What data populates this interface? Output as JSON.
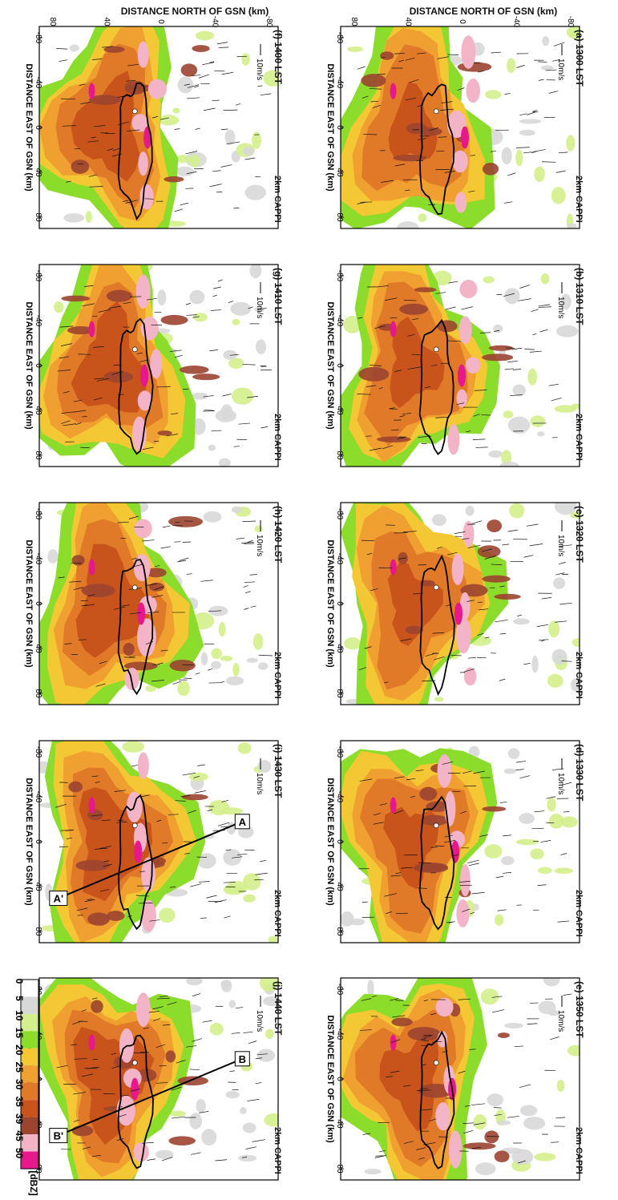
{
  "figure": {
    "y_axis_label": "DISTANCE NORTH OF GSN (km)",
    "x_axis_label": "DISTANCE EAST OF GSN (km)",
    "ticks": [
      "-80",
      "-40",
      "0",
      "40",
      "80"
    ],
    "product_label": "2km CAPPI",
    "vector_scale_label": "10m/s"
  },
  "panels": [
    {
      "tag": "(a)",
      "time": "1300 LST",
      "intensity": 0.55,
      "cross_section": null
    },
    {
      "tag": "(b)",
      "time": "1310 LST",
      "intensity": 0.62,
      "cross_section": null
    },
    {
      "tag": "(c)",
      "time": "1320 LST",
      "intensity": 0.6,
      "cross_section": null
    },
    {
      "tag": "(d)",
      "time": "1330 LST",
      "intensity": 0.6,
      "cross_section": null
    },
    {
      "tag": "(e)",
      "time": "1350 LST",
      "intensity": 0.7,
      "cross_section": null
    },
    {
      "tag": "(f)",
      "time": "1400 LST",
      "intensity": 0.8,
      "cross_section": null
    },
    {
      "tag": "(g)",
      "time": "1410 LST",
      "intensity": 0.85,
      "cross_section": null
    },
    {
      "tag": "(h)",
      "time": "1420 LST",
      "intensity": 0.88,
      "cross_section": null
    },
    {
      "tag": "(i)",
      "time": "1430 LST",
      "intensity": 0.9,
      "cross_section": {
        "start": "A",
        "end": "A'"
      }
    },
    {
      "tag": "(j)",
      "time": "1440 LST",
      "intensity": 0.92,
      "cross_section": {
        "start": "B",
        "end": "B'"
      }
    }
  ],
  "colorbar": {
    "unit": "[dBZ]",
    "levels": [
      "0",
      "5",
      "10",
      "15",
      "20",
      "25",
      "30",
      "35",
      "39",
      "45",
      "50"
    ],
    "colors": [
      "#ffffff",
      "#d8d8d8",
      "#d4f08c",
      "#8cdc2c",
      "#f4c834",
      "#f0a030",
      "#e07a28",
      "#c8541c",
      "#9c4430",
      "#f4b4c8",
      "#e6188c"
    ]
  }
}
